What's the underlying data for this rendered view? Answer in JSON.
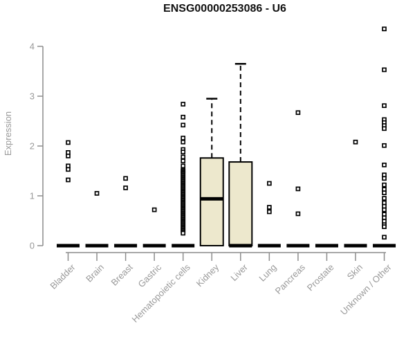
{
  "colors": {
    "box_fill": "#ede8cd",
    "box_border": "#000000",
    "median": "#000000",
    "outlier_stroke": "#000000",
    "outlier_fill": "#ffffff",
    "axis_line": "#8c8c8c",
    "axis_text": "#999999",
    "title_text": "#111111",
    "background": "#ffffff"
  },
  "chart_data": {
    "type": "boxplot",
    "title": "ENSG00000253086 - U6",
    "xlabel": "",
    "ylabel": "Expression",
    "ylim": [
      0,
      4.4
    ],
    "yticks": [
      0,
      1,
      2,
      3,
      4
    ],
    "grid": false,
    "legend": "none",
    "categories": [
      "Bladder",
      "Brain",
      "Breast",
      "Gastric",
      "Hematopoietic cells",
      "Kidney",
      "Liver",
      "Lung",
      "Pancreas",
      "Prostate",
      "Skin",
      "Unknown / Other"
    ],
    "series": [
      {
        "category": "Bladder",
        "q1": 0,
        "median": 0,
        "q3": 0,
        "whisker_low": 0,
        "whisker_high": 0,
        "outliers": [
          2.07,
          1.87,
          1.8,
          1.6,
          1.53,
          1.32
        ]
      },
      {
        "category": "Brain",
        "q1": 0,
        "median": 0,
        "q3": 0,
        "whisker_low": 0,
        "whisker_high": 0,
        "outliers": [
          1.05
        ]
      },
      {
        "category": "Breast",
        "q1": 0,
        "median": 0,
        "q3": 0,
        "whisker_low": 0,
        "whisker_high": 0,
        "outliers": [
          1.35,
          1.16
        ]
      },
      {
        "category": "Gastric",
        "q1": 0,
        "median": 0,
        "q3": 0,
        "whisker_low": 0,
        "whisker_high": 0,
        "outliers": [
          0.72
        ]
      },
      {
        "category": "Hematopoietic cells",
        "q1": 0,
        "median": 0,
        "q3": 0,
        "whisker_low": 0,
        "whisker_high": 0,
        "outliers": [
          2.84,
          2.58,
          2.42,
          2.16,
          2.08,
          1.93,
          1.88,
          1.78,
          1.7,
          1.6,
          1.5
        ],
        "dense_outliers": {
          "from": 1.52,
          "to": 0.25,
          "count": 52
        }
      },
      {
        "category": "Kidney",
        "q1": 0,
        "median": 0.94,
        "q3": 1.76,
        "whisker_low": 0,
        "whisker_high": 2.95,
        "outliers": []
      },
      {
        "category": "Liver",
        "q1": 0,
        "median": 0,
        "q3": 1.68,
        "whisker_low": 0,
        "whisker_high": 3.65,
        "outliers": []
      },
      {
        "category": "Lung",
        "q1": 0,
        "median": 0,
        "q3": 0,
        "whisker_low": 0,
        "whisker_high": 0,
        "outliers": [
          1.25,
          0.77,
          0.68
        ]
      },
      {
        "category": "Pancreas",
        "q1": 0,
        "median": 0,
        "q3": 0,
        "whisker_low": 0,
        "whisker_high": 0,
        "outliers": [
          2.67,
          1.14,
          0.64
        ]
      },
      {
        "category": "Prostate",
        "q1": 0,
        "median": 0,
        "q3": 0,
        "whisker_low": 0,
        "whisker_high": 0,
        "outliers": []
      },
      {
        "category": "Skin",
        "q1": 0,
        "median": 0,
        "q3": 0,
        "whisker_low": 0,
        "whisker_high": 0,
        "outliers": [
          2.08
        ]
      },
      {
        "category": "Unknown / Other",
        "q1": 0,
        "median": 0,
        "q3": 0,
        "whisker_low": 0,
        "whisker_high": 0,
        "outliers": [
          4.35,
          3.53,
          2.81,
          2.53,
          2.47,
          2.41,
          2.35,
          2.01,
          1.62,
          1.42,
          1.35,
          1.22,
          1.13,
          1.06,
          0.95,
          0.86,
          0.79,
          0.72,
          0.63,
          0.56,
          0.49,
          0.42,
          0.38,
          0.17
        ]
      }
    ]
  }
}
